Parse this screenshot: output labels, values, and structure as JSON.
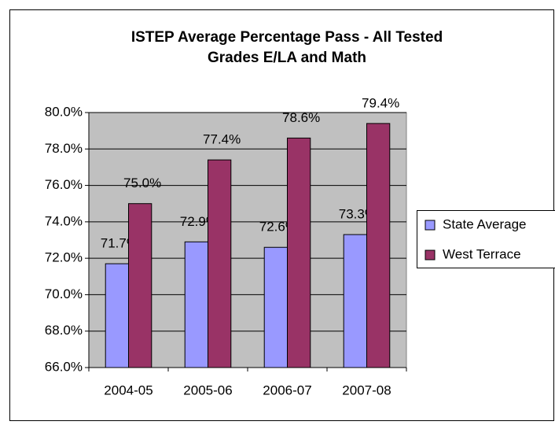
{
  "chart_data": {
    "type": "bar",
    "title": [
      "ISTEP Average Percentage Pass - All Tested",
      "Grades E/LA and Math"
    ],
    "categories": [
      "2004-05",
      "2005-06",
      "2006-07",
      "2007-08"
    ],
    "series": [
      {
        "name": "State Average",
        "color": "#9999ff",
        "values": [
          71.7,
          72.9,
          72.6,
          73.3
        ],
        "value_labels": [
          "71.7%",
          "72.9%",
          "72.6%",
          "73.3%"
        ]
      },
      {
        "name": "West Terrace",
        "color": "#993366",
        "values": [
          75.0,
          77.4,
          78.6,
          79.4
        ],
        "value_labels": [
          "75.0%",
          "77.4%",
          "78.6%",
          "79.4%"
        ]
      }
    ],
    "ylim": [
      66,
      80
    ],
    "yticks": [
      {
        "value": 66,
        "label": "66.0%"
      },
      {
        "value": 68,
        "label": "68.0%"
      },
      {
        "value": 70,
        "label": "70.0%"
      },
      {
        "value": 72,
        "label": "72.0%"
      },
      {
        "value": 74,
        "label": "74.0%"
      },
      {
        "value": 76,
        "label": "76.0%"
      },
      {
        "value": 78,
        "label": "78.0%"
      },
      {
        "value": 80,
        "label": "80.0%"
      }
    ],
    "grid": true,
    "legend": "right"
  }
}
